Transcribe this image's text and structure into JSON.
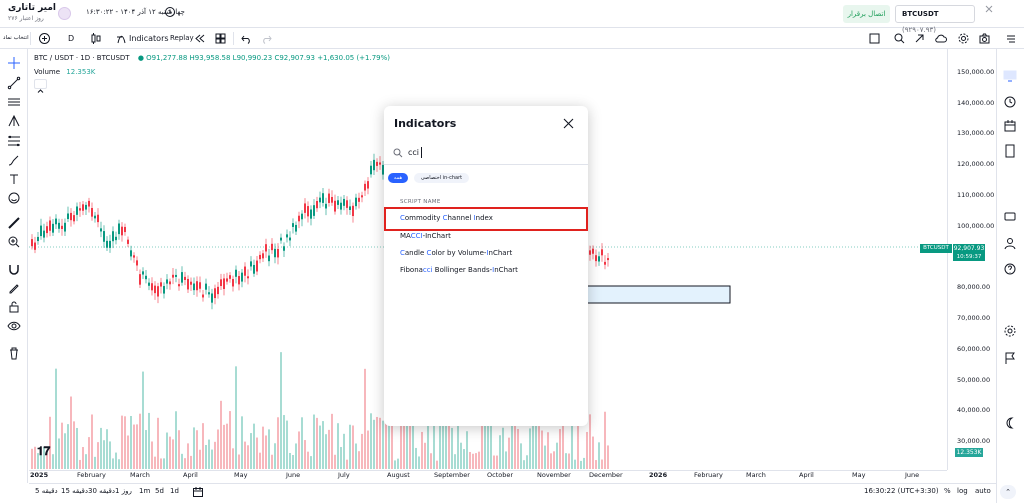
{
  "header": {
    "user_name": "امیر تاتاری",
    "user_sub": "۲۷۶ روز اعتبار",
    "datetime": "چهارشنبه ۱۲ آذر ۱۴۰۴ - ۱۶:۳۰:۲۲",
    "connect_label": "اتصال برقرار",
    "pair_symbol": "BTCUSDT",
    "pair_price": "(۹۲۹۰۷.۹۳)"
  },
  "toolbar": {
    "layout_label": "انتخاب نماد",
    "interval": "D",
    "indicators_label": "Indicators",
    "replay_label": "Replay"
  },
  "legend": {
    "symbol": "BTC / USDT · 1D · BTCUSDT",
    "open": "O91,277.88",
    "high": "H93,958.58",
    "low": "L90,990.23",
    "close": "C92,907.93",
    "change": "+1,630.05 (+1.79%)",
    "volume_label": "Volume",
    "volume_value": "12.353K"
  },
  "price_axis": {
    "labels": [
      "150,000.00",
      "140,000.00",
      "130,000.00",
      "120,000.00",
      "110,000.00",
      "100,000.00",
      "80,000.00",
      "70,000.00",
      "60,000.00",
      "50,000.00",
      "40,000.00",
      "30,000.00"
    ],
    "tag_symbol": "BTCUSDT",
    "tag_price": "92,907.93",
    "tag_time": "10:59:37",
    "volume_tag": "12.353K"
  },
  "time_axis": {
    "labels": [
      "2025",
      "February",
      "March",
      "April",
      "May",
      "June",
      "July",
      "August",
      "September",
      "October",
      "November",
      "December",
      "2026",
      "February",
      "March",
      "April",
      "May",
      "June"
    ]
  },
  "bottom_bar": {
    "ranges": [
      "5 دقیقه",
      "15 دقیقه",
      "30 دقیقه",
      "1 روز",
      "1m",
      "5d",
      "1d"
    ],
    "clock": "16:30:22 (UTC+3:30)",
    "percent": "%",
    "log": "log",
    "auto": "auto"
  },
  "dialog": {
    "title": "Indicators",
    "search_value": "cci",
    "chip_all": "همه",
    "chip_custom": "اختصاصی in-chart",
    "section_label": "SCRIPT NAME",
    "results": [
      {
        "pre": "",
        "hl1": "C",
        "mid1": "ommodity ",
        "hl2": "C",
        "mid2": "hannel ",
        "hl3": "I",
        "post": "ndex"
      },
      {
        "pre": "MA",
        "hl1": "CCI",
        "mid1": "-InChart",
        "hl2": "",
        "mid2": "",
        "hl3": "",
        "post": ""
      },
      {
        "pre": "",
        "hl1": "C",
        "mid1": "andle ",
        "hl2": "C",
        "mid2": "olor by Volume-",
        "hl3": "I",
        "post": "nChart"
      },
      {
        "pre": "Fibona",
        "hl1": "cci",
        "mid1": " Bollinger Bands-",
        "hl2": "I",
        "mid2": "nChart",
        "hl3": "",
        "post": ""
      }
    ]
  },
  "colors": {
    "up": "#089981",
    "down": "#f23645",
    "accent": "#2962ff",
    "highlight_box": "#e0221e"
  }
}
